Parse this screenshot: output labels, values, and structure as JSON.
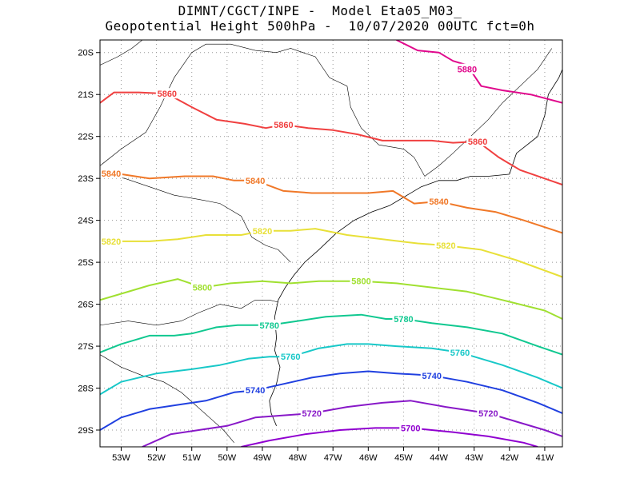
{
  "title": {
    "line1": "DIMNT/CGCT/INPE -  Model Eta05_M03_",
    "line2": "Geopotential Height 500hPa -  10/07/2020 00UTC fct=0h"
  },
  "axes": {
    "lon_min": -53.6,
    "lon_max": -40.5,
    "lat_min": -29.4,
    "lat_max": -19.7,
    "x_ticks": [
      "53W",
      "52W",
      "51W",
      "50W",
      "49W",
      "48W",
      "47W",
      "46W",
      "45W",
      "44W",
      "43W",
      "42W",
      "41W"
    ],
    "x_tick_values": [
      -53,
      -52,
      -51,
      -50,
      -49,
      -48,
      -47,
      -46,
      -45,
      -44,
      -43,
      -42,
      -41
    ],
    "y_ticks": [
      "20S",
      "21S",
      "22S",
      "23S",
      "24S",
      "25S",
      "26S",
      "27S",
      "28S",
      "29S"
    ],
    "y_tick_values": [
      -20,
      -21,
      -22,
      -23,
      -24,
      -25,
      -26,
      -27,
      -28,
      -29
    ],
    "grid": true
  },
  "contours": [
    {
      "level": "5880",
      "color": "#e0088c",
      "label_positions": [
        [
          -43.2,
          -20.4
        ]
      ],
      "points": [
        [
          -45.2,
          -19.7
        ],
        [
          -44.6,
          -19.95
        ],
        [
          -44.0,
          -20.0
        ],
        [
          -43.6,
          -20.2
        ],
        [
          -43.2,
          -20.3
        ],
        [
          -42.8,
          -20.8
        ],
        [
          -42.2,
          -20.9
        ],
        [
          -41.4,
          -21.0
        ],
        [
          -40.5,
          -21.2
        ]
      ]
    },
    {
      "level": "5860",
      "color": "#f04040",
      "label_positions": [
        [
          -51.7,
          -20.98
        ],
        [
          -48.4,
          -21.72
        ],
        [
          -42.9,
          -22.12
        ]
      ],
      "points": [
        [
          -53.6,
          -21.2
        ],
        [
          -53.2,
          -20.95
        ],
        [
          -52.5,
          -20.95
        ],
        [
          -51.7,
          -20.98
        ],
        [
          -51.0,
          -21.3
        ],
        [
          -50.3,
          -21.6
        ],
        [
          -49.5,
          -21.7
        ],
        [
          -48.9,
          -21.8
        ],
        [
          -48.4,
          -21.72
        ],
        [
          -47.7,
          -21.8
        ],
        [
          -47.0,
          -21.85
        ],
        [
          -46.3,
          -21.95
        ],
        [
          -45.6,
          -22.1
        ],
        [
          -45.0,
          -22.1
        ],
        [
          -44.2,
          -22.1
        ],
        [
          -43.6,
          -22.15
        ],
        [
          -42.9,
          -22.12
        ],
        [
          -42.3,
          -22.5
        ],
        [
          -41.7,
          -22.8
        ],
        [
          -40.5,
          -23.15
        ]
      ]
    },
    {
      "level": "5840",
      "color": "#f07828",
      "label_positions": [
        [
          -53.3,
          -22.88
        ],
        [
          -49.2,
          -23.05
        ],
        [
          -44.0,
          -23.55
        ]
      ],
      "points": [
        [
          -53.6,
          -22.9
        ],
        [
          -53.0,
          -22.9
        ],
        [
          -52.2,
          -23.0
        ],
        [
          -51.2,
          -22.95
        ],
        [
          -50.4,
          -22.95
        ],
        [
          -49.8,
          -23.05
        ],
        [
          -49.2,
          -23.05
        ],
        [
          -48.4,
          -23.3
        ],
        [
          -47.6,
          -23.35
        ],
        [
          -46.8,
          -23.35
        ],
        [
          -46.0,
          -23.35
        ],
        [
          -45.3,
          -23.3
        ],
        [
          -44.7,
          -23.6
        ],
        [
          -44.0,
          -23.55
        ],
        [
          -43.2,
          -23.7
        ],
        [
          -42.4,
          -23.8
        ],
        [
          -41.6,
          -24.0
        ],
        [
          -40.5,
          -24.3
        ]
      ]
    },
    {
      "level": "5820",
      "color": "#e8e038",
      "label_positions": [
        [
          -53.3,
          -24.5
        ],
        [
          -49.0,
          -24.25
        ],
        [
          -43.8,
          -24.6
        ]
      ],
      "points": [
        [
          -53.6,
          -24.5
        ],
        [
          -53.0,
          -24.5
        ],
        [
          -52.2,
          -24.5
        ],
        [
          -51.4,
          -24.45
        ],
        [
          -50.6,
          -24.35
        ],
        [
          -49.6,
          -24.35
        ],
        [
          -49.0,
          -24.25
        ],
        [
          -48.2,
          -24.25
        ],
        [
          -47.5,
          -24.2
        ],
        [
          -46.6,
          -24.35
        ],
        [
          -45.6,
          -24.45
        ],
        [
          -44.6,
          -24.55
        ],
        [
          -43.8,
          -24.6
        ],
        [
          -42.8,
          -24.7
        ],
        [
          -41.8,
          -24.95
        ],
        [
          -40.5,
          -25.35
        ]
      ]
    },
    {
      "level": "5800",
      "color": "#a0e030",
      "label_positions": [
        [
          -50.7,
          -25.6
        ],
        [
          -46.2,
          -25.45
        ]
      ],
      "points": [
        [
          -53.6,
          -25.9
        ],
        [
          -53.0,
          -25.75
        ],
        [
          -52.2,
          -25.55
        ],
        [
          -51.4,
          -25.4
        ],
        [
          -50.7,
          -25.6
        ],
        [
          -49.9,
          -25.5
        ],
        [
          -49.0,
          -25.45
        ],
        [
          -48.2,
          -25.5
        ],
        [
          -47.4,
          -25.45
        ],
        [
          -46.6,
          -25.45
        ],
        [
          -46.2,
          -25.45
        ],
        [
          -45.2,
          -25.5
        ],
        [
          -44.2,
          -25.6
        ],
        [
          -43.2,
          -25.7
        ],
        [
          -42.2,
          -25.9
        ],
        [
          -41.0,
          -26.15
        ],
        [
          -40.5,
          -26.35
        ]
      ]
    },
    {
      "level": "5780",
      "color": "#10c890",
      "label_positions": [
        [
          -48.8,
          -26.5
        ],
        [
          -45.0,
          -26.35
        ]
      ],
      "points": [
        [
          -53.6,
          -27.15
        ],
        [
          -53.0,
          -26.95
        ],
        [
          -52.2,
          -26.75
        ],
        [
          -51.5,
          -26.75
        ],
        [
          -51.0,
          -26.7
        ],
        [
          -50.3,
          -26.55
        ],
        [
          -49.7,
          -26.5
        ],
        [
          -48.8,
          -26.5
        ],
        [
          -48.0,
          -26.4
        ],
        [
          -47.2,
          -26.3
        ],
        [
          -46.2,
          -26.25
        ],
        [
          -45.5,
          -26.35
        ],
        [
          -45.0,
          -26.35
        ],
        [
          -44.2,
          -26.45
        ],
        [
          -43.2,
          -26.55
        ],
        [
          -42.2,
          -26.7
        ],
        [
          -41.2,
          -27.0
        ],
        [
          -40.5,
          -27.2
        ]
      ]
    },
    {
      "level": "5760",
      "color": "#18c8c8",
      "label_positions": [
        [
          -48.2,
          -27.25
        ],
        [
          -43.4,
          -27.15
        ]
      ],
      "points": [
        [
          -53.6,
          -28.15
        ],
        [
          -53.0,
          -27.85
        ],
        [
          -52.0,
          -27.65
        ],
        [
          -51.0,
          -27.55
        ],
        [
          -50.2,
          -27.45
        ],
        [
          -49.4,
          -27.3
        ],
        [
          -48.8,
          -27.25
        ],
        [
          -48.2,
          -27.25
        ],
        [
          -47.4,
          -27.05
        ],
        [
          -46.6,
          -26.95
        ],
        [
          -46.0,
          -26.95
        ],
        [
          -45.2,
          -27.0
        ],
        [
          -44.2,
          -27.05
        ],
        [
          -43.4,
          -27.15
        ],
        [
          -42.2,
          -27.45
        ],
        [
          -41.2,
          -27.75
        ],
        [
          -40.5,
          -28.0
        ]
      ]
    },
    {
      "level": "5740",
      "color": "#2040e0",
      "label_positions": [
        [
          -49.2,
          -28.05
        ],
        [
          -44.2,
          -27.7
        ]
      ],
      "points": [
        [
          -53.6,
          -29.0
        ],
        [
          -53.0,
          -28.7
        ],
        [
          -52.2,
          -28.5
        ],
        [
          -51.4,
          -28.4
        ],
        [
          -50.6,
          -28.3
        ],
        [
          -49.8,
          -28.1
        ],
        [
          -49.2,
          -28.05
        ],
        [
          -48.4,
          -27.9
        ],
        [
          -47.6,
          -27.75
        ],
        [
          -46.8,
          -27.65
        ],
        [
          -46.0,
          -27.6
        ],
        [
          -45.2,
          -27.65
        ],
        [
          -44.2,
          -27.7
        ],
        [
          -43.2,
          -27.85
        ],
        [
          -42.2,
          -28.05
        ],
        [
          -41.2,
          -28.35
        ],
        [
          -40.5,
          -28.6
        ]
      ]
    },
    {
      "level": "5720",
      "color": "#8818c8",
      "label_positions": [
        [
          -47.6,
          -28.6
        ],
        [
          -42.6,
          -28.6
        ]
      ],
      "points": [
        [
          -52.4,
          -29.4
        ],
        [
          -51.6,
          -29.1
        ],
        [
          -50.8,
          -29.0
        ],
        [
          -50.0,
          -28.9
        ],
        [
          -49.2,
          -28.7
        ],
        [
          -48.4,
          -28.65
        ],
        [
          -47.6,
          -28.6
        ],
        [
          -46.6,
          -28.45
        ],
        [
          -45.6,
          -28.35
        ],
        [
          -44.8,
          -28.3
        ],
        [
          -43.8,
          -28.45
        ],
        [
          -42.6,
          -28.6
        ],
        [
          -41.8,
          -28.8
        ],
        [
          -41.0,
          -29.0
        ],
        [
          -40.5,
          -29.15
        ]
      ]
    },
    {
      "level": "5700",
      "color": "#9000d0",
      "label_positions": [
        [
          -44.8,
          -28.95
        ]
      ],
      "points": [
        [
          -49.6,
          -29.4
        ],
        [
          -48.8,
          -29.25
        ],
        [
          -47.8,
          -29.1
        ],
        [
          -46.8,
          -29.0
        ],
        [
          -45.8,
          -28.95
        ],
        [
          -44.8,
          -28.95
        ],
        [
          -43.6,
          -29.05
        ],
        [
          -42.6,
          -29.15
        ],
        [
          -41.6,
          -29.3
        ],
        [
          -41.2,
          -29.4
        ]
      ]
    }
  ],
  "coastline": [
    [
      -48.6,
      -28.9
    ],
    [
      -48.75,
      -28.6
    ],
    [
      -48.8,
      -28.3
    ],
    [
      -48.6,
      -27.9
    ],
    [
      -48.5,
      -27.5
    ],
    [
      -48.65,
      -27.1
    ],
    [
      -48.6,
      -26.8
    ],
    [
      -48.65,
      -26.3
    ],
    [
      -48.55,
      -25.9
    ],
    [
      -48.35,
      -25.6
    ],
    [
      -48.1,
      -25.3
    ],
    [
      -47.8,
      -25.0
    ],
    [
      -47.4,
      -24.7
    ],
    [
      -46.9,
      -24.3
    ],
    [
      -46.4,
      -24.0
    ],
    [
      -45.9,
      -23.8
    ],
    [
      -45.4,
      -23.65
    ],
    [
      -44.9,
      -23.4
    ],
    [
      -44.5,
      -23.2
    ],
    [
      -44.0,
      -23.05
    ],
    [
      -43.5,
      -23.05
    ],
    [
      -43.1,
      -22.95
    ],
    [
      -42.6,
      -22.95
    ],
    [
      -42.0,
      -22.9
    ],
    [
      -41.8,
      -22.4
    ],
    [
      -41.2,
      -22.0
    ],
    [
      -41.0,
      -21.5
    ],
    [
      -40.9,
      -21.0
    ],
    [
      -40.6,
      -20.6
    ],
    [
      -40.5,
      -20.4
    ]
  ],
  "borders": [
    [
      [
        -53.6,
        -22.7
      ],
      [
        -53.0,
        -22.3
      ],
      [
        -52.3,
        -21.9
      ],
      [
        -51.9,
        -21.3
      ],
      [
        -51.5,
        -20.6
      ],
      [
        -51.0,
        -20.0
      ],
      [
        -50.6,
        -19.8
      ],
      [
        -49.9,
        -19.8
      ],
      [
        -49.2,
        -19.95
      ],
      [
        -48.6,
        -20.0
      ],
      [
        -48.2,
        -19.9
      ],
      [
        -47.5,
        -20.1
      ],
      [
        -47.1,
        -20.6
      ],
      [
        -46.6,
        -20.8
      ],
      [
        -46.5,
        -21.3
      ],
      [
        -46.2,
        -21.8
      ],
      [
        -45.7,
        -22.2
      ],
      [
        -45.0,
        -22.3
      ],
      [
        -44.7,
        -22.5
      ],
      [
        -44.4,
        -22.95
      ]
    ],
    [
      [
        -53.6,
        -26.5
      ],
      [
        -52.8,
        -26.4
      ],
      [
        -52.0,
        -26.5
      ],
      [
        -51.3,
        -26.4
      ],
      [
        -50.8,
        -26.2
      ],
      [
        -50.2,
        -26.0
      ],
      [
        -49.6,
        -26.1
      ],
      [
        -49.2,
        -25.9
      ],
      [
        -48.8,
        -25.9
      ],
      [
        -48.55,
        -25.95
      ]
    ],
    [
      [
        -53.6,
        -27.2
      ],
      [
        -53.0,
        -27.5
      ],
      [
        -52.4,
        -27.7
      ],
      [
        -51.8,
        -27.85
      ],
      [
        -51.3,
        -28.1
      ],
      [
        -50.9,
        -28.4
      ],
      [
        -50.5,
        -28.7
      ],
      [
        -50.1,
        -29.0
      ],
      [
        -49.8,
        -29.3
      ]
    ],
    [
      [
        -53.6,
        -22.9
      ],
      [
        -52.9,
        -23.0
      ],
      [
        -52.2,
        -23.2
      ],
      [
        -51.5,
        -23.4
      ],
      [
        -50.8,
        -23.5
      ],
      [
        -50.2,
        -23.6
      ],
      [
        -49.6,
        -23.9
      ],
      [
        -49.3,
        -24.4
      ],
      [
        -48.9,
        -24.6
      ],
      [
        -48.55,
        -24.7
      ],
      [
        -48.2,
        -25.0
      ]
    ],
    [
      [
        -44.4,
        -22.95
      ],
      [
        -44.0,
        -22.7
      ],
      [
        -43.6,
        -22.4
      ],
      [
        -43.1,
        -22.0
      ],
      [
        -42.6,
        -21.6
      ],
      [
        -42.2,
        -21.2
      ],
      [
        -41.7,
        -20.8
      ],
      [
        -41.2,
        -20.4
      ],
      [
        -40.8,
        -19.9
      ]
    ],
    [
      [
        -53.6,
        -20.3
      ],
      [
        -53.1,
        -20.1
      ],
      [
        -52.7,
        -19.9
      ],
      [
        -52.4,
        -19.7
      ]
    ]
  ]
}
